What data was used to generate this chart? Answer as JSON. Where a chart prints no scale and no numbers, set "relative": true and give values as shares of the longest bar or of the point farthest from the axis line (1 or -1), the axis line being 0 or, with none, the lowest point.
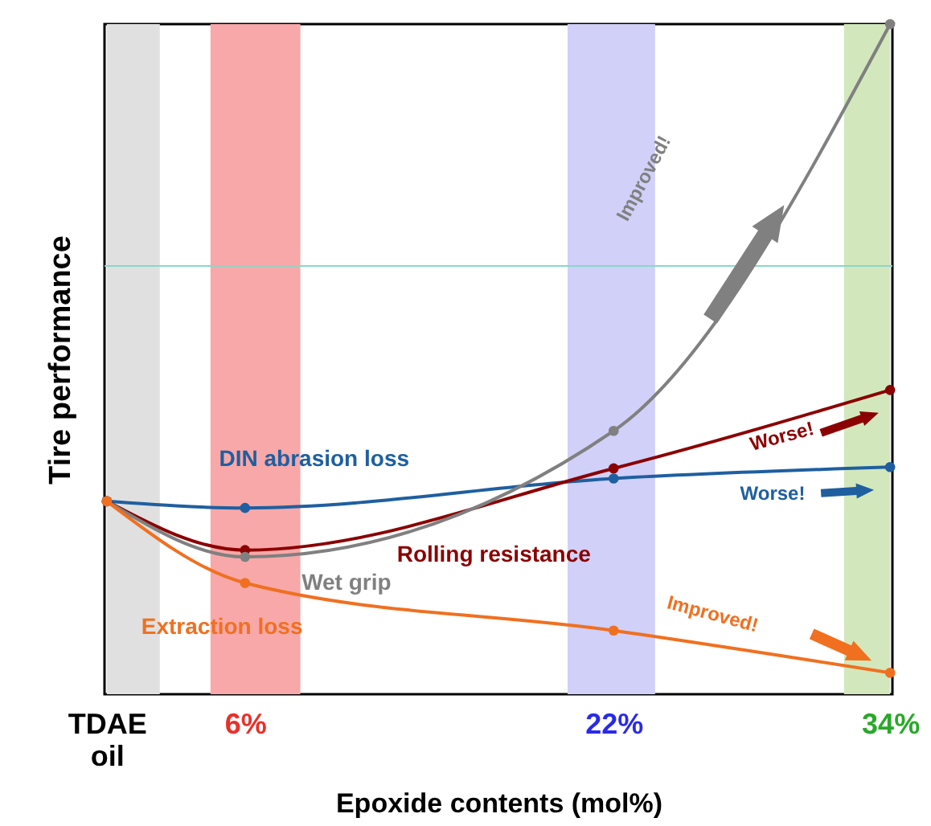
{
  "chart_data": {
    "type": "line",
    "relative": true,
    "xlabel": "Epoxide contents (mol%)",
    "ylabel": "Tire performance",
    "x": [
      0,
      6,
      22,
      34
    ],
    "xlim": [
      -0.1,
      34.1
    ],
    "xticks": [
      {
        "value": 0,
        "label": "TDAE oil"
      },
      {
        "value": 6,
        "label": "6%"
      },
      {
        "value": 22,
        "label": "22%"
      },
      {
        "value": 34,
        "label": "34%"
      }
    ],
    "marker": "circle",
    "legend": false,
    "grid": false,
    "series": [
      {
        "name": "DIN abrasion loss",
        "color": "#1f5fa0",
        "values": [
          0.288,
          0.278,
          0.322,
          0.339
        ]
      },
      {
        "name": "Rolling resistance",
        "color": "#8b0000",
        "values": [
          0.288,
          0.215,
          0.337,
          0.454
        ]
      },
      {
        "name": "Wet grip",
        "color": "#808080",
        "values": [
          0.288,
          0.205,
          0.393,
          1
        ]
      },
      {
        "name": "Extraction loss",
        "color": "#f07020",
        "values": [
          0.288,
          0.166,
          0.095,
          0.032
        ]
      }
    ],
    "bands": [
      {
        "axis": "x",
        "from": 0,
        "to": 2.3,
        "color": "#e0e0e0"
      },
      {
        "axis": "x",
        "from": 4.5,
        "to": 8.4,
        "color": "#f8a8a8"
      },
      {
        "axis": "x",
        "from": 20,
        "to": 23.8,
        "color": "#d0d0f8"
      },
      {
        "axis": "x",
        "from": 32,
        "to": 34,
        "color": "#d2e8bc"
      }
    ],
    "ref_lines": [
      {
        "axis": "y",
        "value": 0.639,
        "color": "#88d8c8"
      }
    ],
    "annotations": [
      "Improved!",
      "Worse!",
      "Worse!",
      "Improved!"
    ]
  }
}
